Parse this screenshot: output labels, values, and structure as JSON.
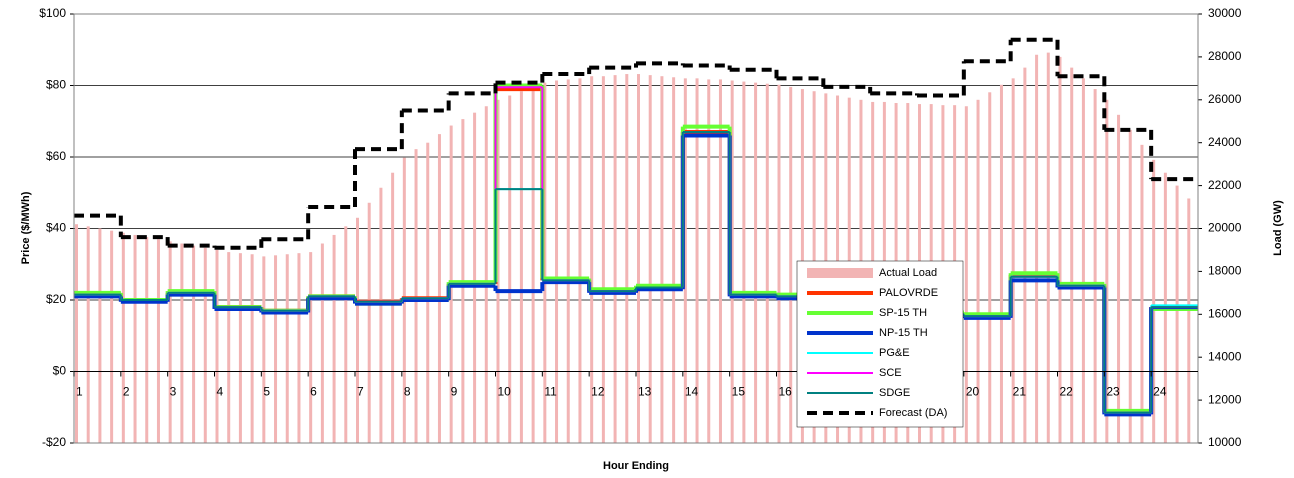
{
  "chart_data": {
    "type": "combo",
    "y_label": "Price ($/MWh)",
    "y2_label": "Load (GW)",
    "x_label": "Hour Ending",
    "xlim": [
      1,
      25
    ],
    "xticks": [
      1,
      2,
      3,
      4,
      5,
      6,
      7,
      8,
      9,
      10,
      11,
      12,
      13,
      14,
      15,
      16,
      17,
      18,
      19,
      20,
      21,
      22,
      23,
      24
    ],
    "ylim": [
      -20,
      100
    ],
    "yticks": [
      {
        "value": -20,
        "label": "-$20"
      },
      {
        "value": 0,
        "label": "$0"
      },
      {
        "value": 20,
        "label": "$20"
      },
      {
        "value": 40,
        "label": "$40"
      },
      {
        "value": 60,
        "label": "$60"
      },
      {
        "value": 80,
        "label": "$80"
      },
      {
        "value": 100,
        "label": "$100"
      }
    ],
    "y2lim": [
      10000,
      30000
    ],
    "y2ticks": [
      10000,
      12000,
      14000,
      16000,
      18000,
      20000,
      22000,
      24000,
      26000,
      28000,
      30000
    ],
    "grid": true,
    "legend": "lower right",
    "x": [
      1,
      2,
      3,
      4,
      5,
      6,
      7,
      8,
      9,
      10,
      11,
      12,
      13,
      14,
      15,
      16,
      17,
      18,
      19,
      20,
      21,
      22,
      23,
      24
    ],
    "series": [
      {
        "name": "Actual Load",
        "type": "bar",
        "axis": "y2",
        "color": "#f2b4b4",
        "x": [
          1,
          1.25,
          1.5,
          1.75,
          2,
          2.25,
          2.5,
          2.75,
          3,
          3.25,
          3.5,
          3.75,
          4,
          4.25,
          4.5,
          4.75,
          5,
          5.25,
          5.5,
          5.75,
          6,
          6.25,
          6.5,
          6.75,
          7,
          7.25,
          7.5,
          7.75,
          8,
          8.25,
          8.5,
          8.75,
          9,
          9.25,
          9.5,
          9.75,
          10,
          10.25,
          10.5,
          10.75,
          11,
          11.25,
          11.5,
          11.75,
          12,
          12.25,
          12.5,
          12.75,
          13,
          13.25,
          13.5,
          13.75,
          14,
          14.25,
          14.5,
          14.75,
          15,
          15.25,
          15.5,
          15.75,
          16,
          16.25,
          16.5,
          16.75,
          17,
          17.25,
          17.5,
          17.75,
          18,
          18.25,
          18.5,
          18.75,
          19,
          19.25,
          19.5,
          19.75,
          20,
          20.25,
          20.5,
          20.75,
          21,
          21.25,
          21.5,
          21.75,
          22,
          22.25,
          22.5,
          22.75,
          23,
          23.25,
          23.5,
          23.75,
          24,
          24.25,
          24.5,
          24.75
        ],
        "values": [
          20200,
          20100,
          20000,
          19900,
          19800,
          19700,
          19600,
          19500,
          19400,
          19300,
          19200,
          19100,
          19000,
          18900,
          18850,
          18800,
          18700,
          18750,
          18800,
          18850,
          18900,
          19300,
          19700,
          20100,
          20500,
          21200,
          21900,
          22600,
          23300,
          23700,
          24000,
          24400,
          24800,
          25100,
          25400,
          25700,
          26000,
          26200,
          26400,
          26600,
          26800,
          26900,
          26950,
          27000,
          27100,
          27100,
          27150,
          27200,
          27200,
          27150,
          27100,
          27050,
          27000,
          27000,
          26950,
          26950,
          26900,
          26850,
          26800,
          26750,
          26700,
          26600,
          26500,
          26400,
          26300,
          26200,
          26100,
          26000,
          25900,
          25900,
          25850,
          25850,
          25800,
          25800,
          25750,
          25750,
          25700,
          26000,
          26350,
          26700,
          27000,
          27500,
          28100,
          28200,
          28000,
          27500,
          27000,
          26500,
          26000,
          25300,
          24600,
          23900,
          23200,
          22600,
          22000,
          21400
        ]
      },
      {
        "name": "PALOVRDE",
        "type": "step",
        "color": "#ff3300",
        "line_width": 4,
        "values": [
          21.5,
          20,
          22,
          18,
          17,
          21,
          19.5,
          20.5,
          24.5,
          79,
          25.5,
          22.5,
          23.5,
          67,
          21.5,
          21,
          20,
          18,
          16,
          15.5,
          27,
          24,
          -11.5,
          18
        ]
      },
      {
        "name": "SP-15 TH",
        "type": "step",
        "color": "#66ff33",
        "line_width": 4,
        "values": [
          22,
          20,
          22.5,
          18,
          17,
          21,
          19,
          20,
          25,
          80,
          26,
          23,
          24,
          68.5,
          22,
          21.5,
          20.5,
          18.5,
          16.5,
          16,
          27.5,
          24.5,
          -11,
          17.5
        ]
      },
      {
        "name": "NP-15 TH",
        "type": "step",
        "color": "#0033cc",
        "line_width": 4,
        "values": [
          21,
          19.5,
          21.5,
          17.5,
          16.5,
          20.5,
          19,
          20,
          24,
          22.5,
          25,
          22,
          23,
          66,
          21,
          20.5,
          19.5,
          17.5,
          15.5,
          15,
          25.5,
          23.5,
          -12,
          18
        ]
      },
      {
        "name": "PG&E",
        "type": "step",
        "color": "#00ffff",
        "line_width": 2,
        "values": [
          21.5,
          20,
          22,
          18,
          17,
          21,
          19.5,
          20.5,
          24.5,
          51,
          25.5,
          22.5,
          23.5,
          67,
          21.5,
          21,
          20,
          18,
          16,
          15.5,
          26.5,
          24,
          -11.5,
          18.5
        ]
      },
      {
        "name": "SCE",
        "type": "step",
        "color": "#ff00ff",
        "line_width": 2,
        "values": [
          21.5,
          20,
          22,
          18,
          17,
          21,
          19.5,
          20.5,
          24.5,
          79.5,
          25.5,
          22.5,
          23.5,
          67,
          21.5,
          21,
          20,
          18,
          16,
          15.5,
          26.5,
          24,
          -11.5,
          18
        ]
      },
      {
        "name": "SDGE",
        "type": "step",
        "color": "#008080",
        "line_width": 2,
        "values": [
          21.5,
          20,
          22,
          18,
          17,
          21,
          19.5,
          20.5,
          24.5,
          51,
          25.5,
          22.5,
          23.5,
          67,
          21.5,
          21,
          20,
          18,
          16,
          15.5,
          26.5,
          24,
          -11.5,
          18
        ]
      },
      {
        "name": "Forecast (DA)",
        "type": "step",
        "axis": "y2",
        "color": "#000000",
        "line_width": 4,
        "dashed": true,
        "values": [
          20600,
          19600,
          19200,
          19100,
          19500,
          21000,
          23700,
          25500,
          26300,
          26800,
          27200,
          27500,
          27700,
          27600,
          27400,
          27000,
          26600,
          26300,
          26200,
          27800,
          28800,
          27100,
          24600,
          22300
        ]
      }
    ]
  }
}
